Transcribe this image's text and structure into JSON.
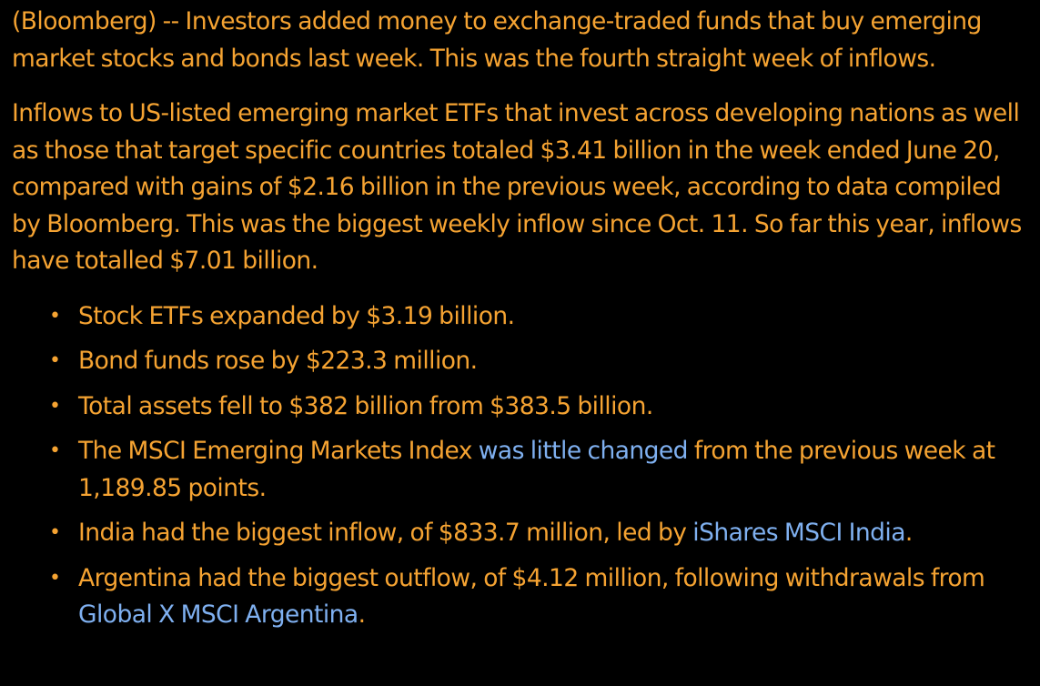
{
  "article": {
    "paragraphs": [
      "(Bloomberg) -- Investors added money to exchange-traded funds that buy emerging market stocks and bonds last week. This was the fourth straight week of inflows.",
      "Inflows to US-listed emerging market ETFs that invest across developing nations as well as those that target specific countries totaled $3.41 billion in the week ended June 20, compared with gains of $2.16 billion in the previous week, according to data compiled by Bloomberg. This was the biggest weekly inflow since Oct. 11. So far this year, inflows have totalled $7.01 billion."
    ],
    "bullets": {
      "b1": "Stock ETFs expanded by $3.19 billion.",
      "b2": "Bond funds rose by $223.3 million.",
      "b3": "Total assets fell to $382 billion from $383.5 billion.",
      "b4_before": "The MSCI Emerging Markets Index ",
      "b4_link": "was little changed",
      "b4_after": " from the previous week at 1,189.85 points.",
      "b5_before": "India had the biggest inflow, of $833.7 million, led by ",
      "b5_link": "iShares MSCI India",
      "b5_after": ".",
      "b6_before": "Argentina had the biggest outflow, of $4.12 million, following withdrawals from ",
      "b6_link": "Global X MSCI Argentina",
      "b6_after": "."
    },
    "bullet_symbol": "•",
    "colors": {
      "background": "#000000",
      "text": "#f5a332",
      "link": "#7fb0f0"
    }
  }
}
